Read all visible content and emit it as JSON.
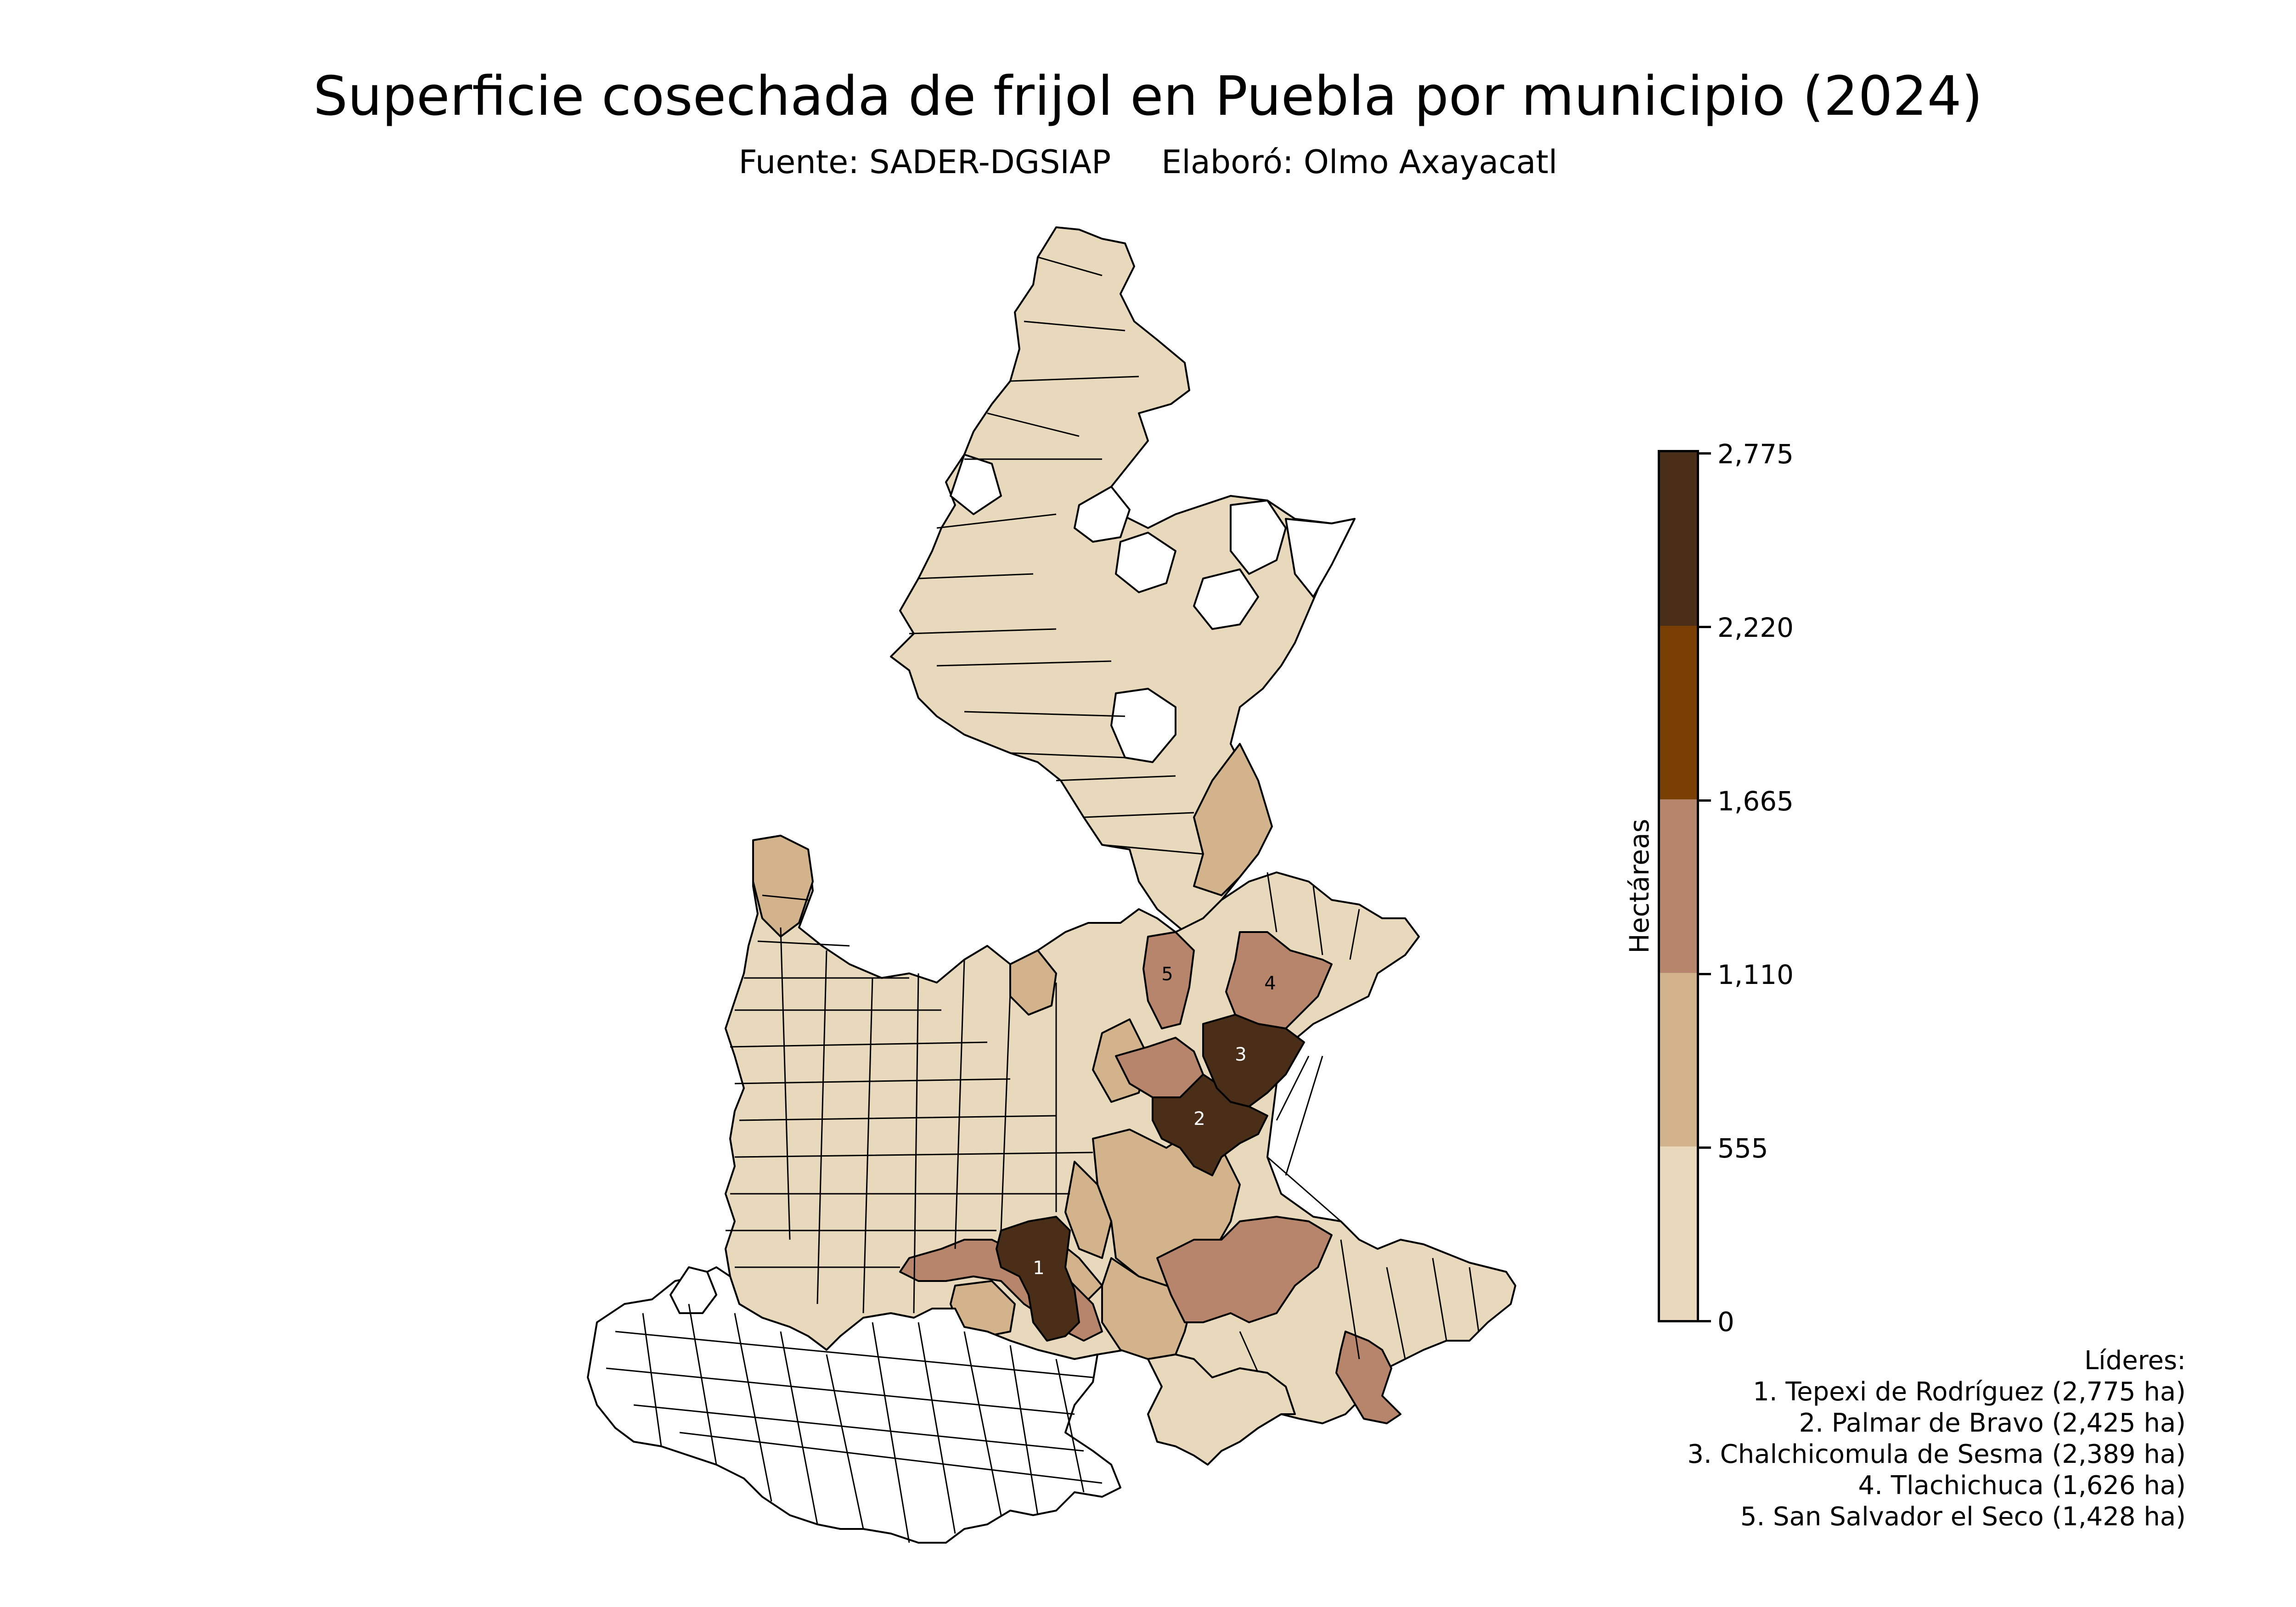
{
  "title": "Superficie cosechada de frijol en Puebla por municipio (2024)",
  "subtitle": {
    "source": "Fuente: SADER-DGSIAP",
    "author": "Elaboró: Olmo Axayacatl"
  },
  "legend": {
    "label": "Hectáreas",
    "ticks": [
      "0",
      "555",
      "1,110",
      "1,665",
      "2,220",
      "2,775"
    ],
    "colors": [
      "#e8d8bc",
      "#d3b38c",
      "#b6856b",
      "#7a3f04",
      "#4a2e17"
    ]
  },
  "leaders": {
    "heading": "Líderes:",
    "items": [
      "1. Tepexi de Rodríguez (2,775 ha)",
      "2. Palmar de Bravo (2,425 ha)",
      "3. Chalchicomula de Sesma (2,389 ha)",
      "4. Tlachichuca (1,626 ha)",
      "5. San Salvador el Seco (1,428 ha)"
    ]
  },
  "map_labels": [
    "1",
    "2",
    "3",
    "4",
    "5"
  ],
  "chart_data": {
    "type": "choropleth",
    "title": "Superficie cosechada de frijol en Puebla por municipio (2024)",
    "colorbar_label": "Hectáreas",
    "colorbar_range": [
      0,
      2775
    ],
    "class_breaks": [
      0,
      555,
      1110,
      1665,
      2220,
      2775
    ],
    "top_municipalities": [
      {
        "rank": 1,
        "name": "Tepexi de Rodríguez",
        "ha": 2775
      },
      {
        "rank": 2,
        "name": "Palmar de Bravo",
        "ha": 2425
      },
      {
        "rank": 3,
        "name": "Chalchicomula de Sesma",
        "ha": 2389
      },
      {
        "rank": 4,
        "name": "Tlachichuca",
        "ha": 1626
      },
      {
        "rank": 5,
        "name": "San Salvador el Seco",
        "ha": 1428
      }
    ]
  }
}
